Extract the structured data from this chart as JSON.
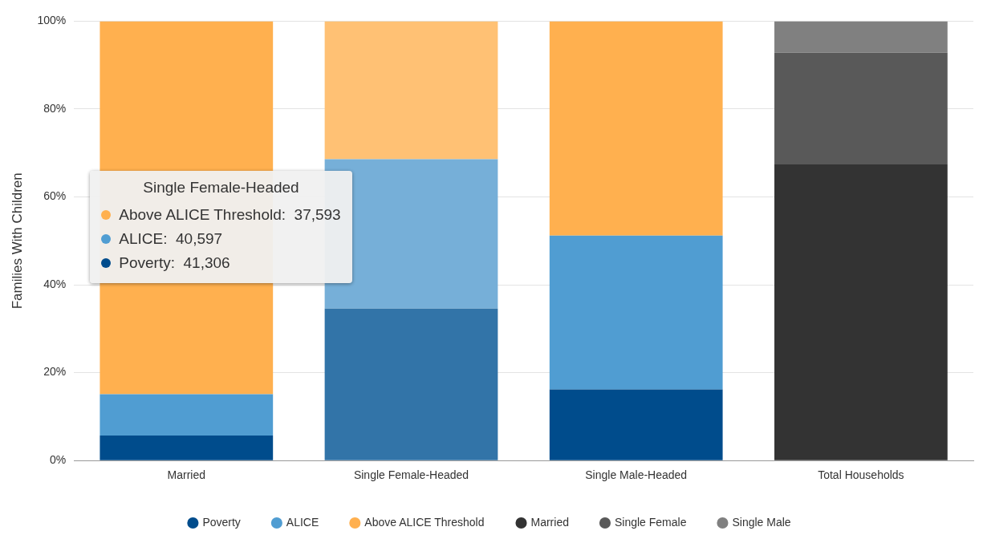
{
  "chart_data": {
    "type": "bar",
    "stacked": true,
    "ylabel": "Families With Children",
    "categories": [
      "Married",
      "Single Female-Headed",
      "Single Male-Headed",
      "Total Households"
    ],
    "series": [
      {
        "name": "Poverty",
        "color": "#004c8c",
        "colors": [
          "#004c8c",
          "#3274a8",
          "#004c8c",
          "#004c8c"
        ],
        "values": [
          5.7,
          34.6,
          16.2,
          null
        ]
      },
      {
        "name": "ALICE",
        "color": "#509dd2",
        "colors": [
          "#509dd2",
          "#76afd8",
          "#509dd2",
          "#509dd2"
        ],
        "values": [
          9.4,
          34.0,
          35.0,
          null
        ]
      },
      {
        "name": "Above ALICE Threshold",
        "color": "#ffb04f",
        "colors": [
          "#ffb04f",
          "#ffc174",
          "#ffb04f",
          "#ffb04f"
        ],
        "values": [
          84.9,
          31.4,
          48.8,
          null
        ]
      },
      {
        "name": "Married",
        "color": "#333333",
        "values": [
          null,
          null,
          null,
          67.4
        ]
      },
      {
        "name": "Single Female",
        "color": "#595959",
        "values": [
          null,
          null,
          null,
          25.4
        ]
      },
      {
        "name": "Single Male",
        "color": "#808080",
        "values": [
          null,
          null,
          null,
          7.2
        ]
      }
    ],
    "ylim": [
      0,
      100
    ],
    "yticks": [
      {
        "value": 0,
        "label": "0%"
      },
      {
        "value": 20,
        "label": "20%"
      },
      {
        "value": 40,
        "label": "40%"
      },
      {
        "value": 60,
        "label": "60%"
      },
      {
        "value": 80,
        "label": "80%"
      },
      {
        "value": 100,
        "label": "100%"
      }
    ],
    "grid": "y",
    "legend": "bottom",
    "annotations": [
      "Single Female-Headed",
      "Above ALICE Threshold:  37,593",
      "ALICE:  40,597",
      "Poverty:  41,306"
    ]
  }
}
